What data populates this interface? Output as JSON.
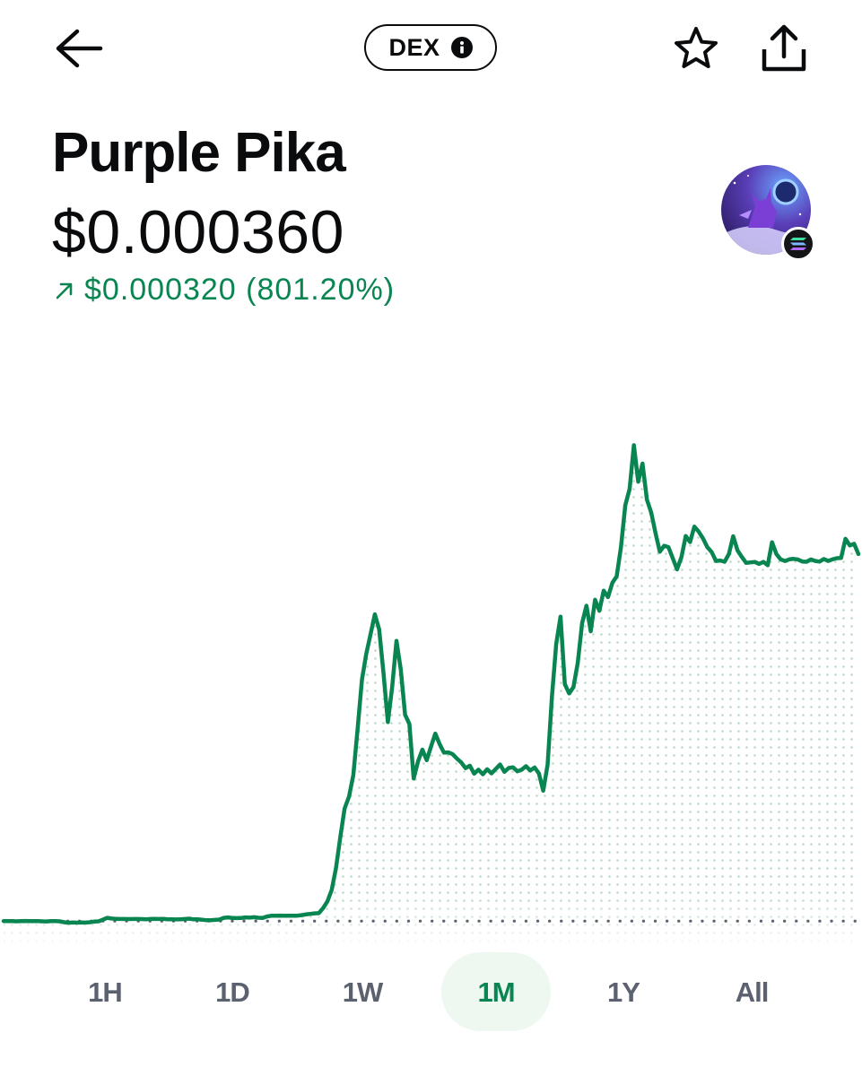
{
  "header": {
    "back_icon": "arrow-left-icon",
    "pill_label": "DEX",
    "pill_icon": "info-icon",
    "star_icon": "star-outline-icon",
    "share_icon": "share-upload-icon"
  },
  "asset": {
    "name": "Purple Pika",
    "price": "$0.000360",
    "change_icon": "arrow-up-right-icon",
    "change_text": "$0.000320 (801.20%)",
    "avatar_icon": "token-avatar-image",
    "chain_badge_icon": "solana-icon"
  },
  "colors": {
    "accent_green": "#098551",
    "text_primary": "#0a0b0d",
    "text_secondary": "#5b616e",
    "active_tab_bg": "#eef8f1"
  },
  "range_tabs": [
    {
      "label": "1H",
      "active": false
    },
    {
      "label": "1D",
      "active": false
    },
    {
      "label": "1W",
      "active": false
    },
    {
      "label": "1M",
      "active": true
    },
    {
      "label": "1Y",
      "active": false
    },
    {
      "label": "All",
      "active": false
    }
  ],
  "chart_data": {
    "type": "area",
    "series": [
      {
        "values": [
          4e-05,
          4e-05,
          4e-05,
          3.98e-05,
          4e-05,
          4.01e-05,
          3.99e-05,
          4e-05,
          4e-05,
          3.98e-05,
          3.97e-05,
          3.99e-05,
          4e-05,
          3.98e-05,
          3.9e-05,
          3.85e-05,
          3.88e-05,
          3.86e-05,
          3.88e-05,
          3.87e-05,
          3.9e-05,
          3.95e-05,
          3.98e-05,
          4.12e-05,
          4.28e-05,
          4.22e-05,
          4.2e-05,
          4.18e-05,
          4.18e-05,
          4.17e-05,
          4.18e-05,
          4.18e-05,
          4.17e-05,
          4.15e-05,
          4.18e-05,
          4.2e-05,
          4.18e-05,
          4.19e-05,
          4.15e-05,
          4.16e-05,
          4.14e-05,
          4.16e-05,
          4.18e-05,
          4.21e-05,
          4.15e-05,
          4.15e-05,
          4.12e-05,
          4.07e-05,
          4.08e-05,
          4.1e-05,
          4.13e-05,
          4.28e-05,
          4.32e-05,
          4.27e-05,
          4.26e-05,
          4.27e-05,
          4.32e-05,
          4.3e-05,
          4.34e-05,
          4.29e-05,
          4.27e-05,
          4.4e-05,
          4.46e-05,
          4.47e-05,
          4.48e-05,
          4.47e-05,
          4.46e-05,
          4.47e-05,
          4.47e-05,
          4.52e-05,
          4.58e-05,
          4.62e-05,
          4.67e-05,
          4.69e-05,
          5.13e-05,
          5.71e-05,
          6.71e-05,
          8.63e-05,
          0.0001133,
          0.0001382,
          0.0001485,
          0.0001673,
          0.0002077,
          0.0002502,
          0.0002729,
          0.00029,
          0.0003075,
          0.0002943,
          0.0002558,
          0.0002135,
          0.0002439,
          0.0002843,
          0.0002594,
          0.0002199,
          0.0002119,
          0.0001643,
          0.0001794,
          0.0001895,
          0.0001803,
          0.0001921,
          0.0002035,
          0.0001943,
          0.0001868,
          0.0001871,
          0.0001855,
          0.0001817,
          0.0001783,
          0.0001733,
          0.0001755,
          0.0001685,
          0.000172,
          0.000168,
          0.0001724,
          0.0001688,
          0.0001726,
          0.0001765,
          0.0001701,
          0.0001735,
          0.0001741,
          0.0001706,
          0.000172,
          0.000175,
          0.0001713,
          0.0001739,
          0.0001687,
          0.0001537,
          0.0001763,
          0.0002354,
          0.0002817,
          0.0003054,
          0.0002466,
          0.0002385,
          0.000244,
          0.0002651,
          0.0002999,
          0.000315,
          0.0002927,
          0.0003201,
          0.0003105,
          0.0003281,
          0.0003225,
          0.0003349,
          0.0003405,
          0.0003662,
          0.0004025,
          0.0004166,
          0.0004549,
          0.0004231,
          0.0004389,
          0.0004075,
          0.0003962,
          0.0003783,
          0.000362,
          0.0003672,
          0.0003661,
          0.0003564,
          0.0003466,
          0.0003573,
          0.0003757,
          0.0003705,
          0.0003839,
          0.0003796,
          0.0003737,
          0.0003661,
          0.0003617,
          0.000354,
          0.0003544,
          0.0003533,
          0.00036,
          0.0003756,
          0.0003632,
          0.0003575,
          0.0003523,
          0.0003527,
          0.0003531,
          0.0003514,
          0.0003532,
          0.0003502,
          0.0003703,
          0.0003599,
          0.0003553,
          0.0003539,
          0.0003554,
          0.0003558,
          0.0003552,
          0.0003535,
          0.0003533,
          0.0003553,
          0.000354,
          0.0003534,
          0.0003557,
          0.000354,
          0.0003554,
          0.0003564,
          0.0003566,
          0.0003733,
          0.0003675,
          0.0003689,
          0.00036
        ]
      }
    ],
    "baseline": 4e-05,
    "ylim": [
      3e-05,
      0.00046
    ],
    "grid": false,
    "legend": "none"
  }
}
